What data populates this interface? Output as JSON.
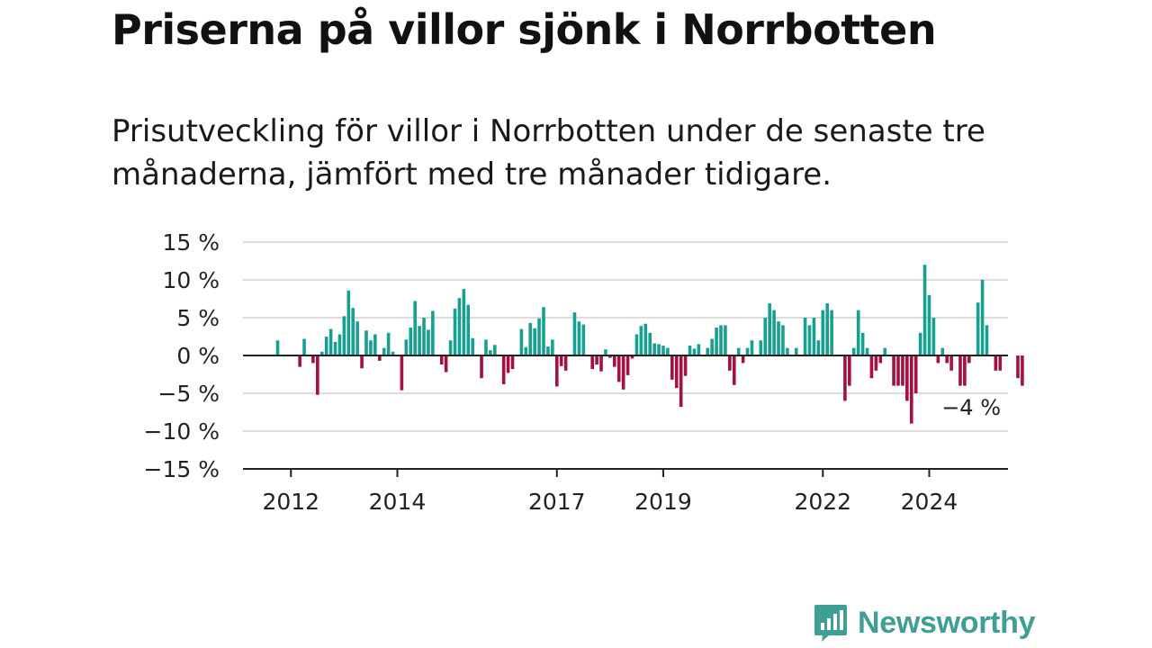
{
  "title": "Priserna på villor sjönk i Norrbotten",
  "subtitle": "Prisutveckling för villor i Norrbotten under de senaste tre månaderna, jämfört med tre månader tidigare.",
  "brand": {
    "name": "Newsworthy",
    "icon": "newsworthy-bar-chart-logo-icon"
  },
  "colors": {
    "positive": "#17a08f",
    "negative": "#a5103f",
    "grid": "#dcdcdc",
    "axis": "#222222",
    "brand": "#3f9e95"
  },
  "chart_data": {
    "type": "bar",
    "unit": "%",
    "ylim": [
      -15,
      15
    ],
    "y_ticks": [
      15,
      10,
      5,
      0,
      -5,
      -10,
      -15
    ],
    "y_tick_labels": [
      "15 %",
      "10 %",
      "5 %",
      "0 %",
      "−5 %",
      "−10 %",
      "−15 %"
    ],
    "x_tick_labels": [
      "2012",
      "2014",
      "2017",
      "2019",
      "2022",
      "2024"
    ],
    "x_tick_dates": [
      "2012-01",
      "2014-01",
      "2017-01",
      "2019-01",
      "2022-01",
      "2024-01"
    ],
    "start_month": "2011-10",
    "grid": true,
    "annotation": {
      "text": "−4 %",
      "target": "last"
    },
    "values": [
      2,
      0,
      0,
      0,
      0,
      -1.5,
      2.2,
      0,
      -1,
      -5.2,
      0.5,
      2.5,
      3.5,
      1.8,
      2.8,
      5.2,
      8.6,
      6.3,
      4.5,
      -1.7,
      3.3,
      2,
      2.8,
      -0.7,
      1,
      3,
      0.5,
      0,
      -4.6,
      2.1,
      3.7,
      7.2,
      3.9,
      5,
      3.4,
      5.9,
      0,
      -1.2,
      -2.2,
      2,
      6.2,
      7.6,
      8.8,
      6.7,
      2.3,
      0,
      -3,
      2.1,
      0.7,
      1.4,
      0,
      -3.8,
      -2.3,
      -1.8,
      0,
      3.5,
      1.1,
      4.3,
      3.6,
      4.9,
      6.4,
      1.2,
      2.1,
      -4.1,
      -1.4,
      -2,
      0,
      5.7,
      4.5,
      4.1,
      0,
      -1.8,
      -1.2,
      -2.1,
      0.8,
      -0.3,
      -1.5,
      -3.5,
      -4.5,
      -2.6,
      -0.4,
      2.8,
      3.9,
      4.2,
      3,
      1.6,
      1.5,
      1.3,
      1,
      -3.2,
      -4.3,
      -6.8,
      -2.7,
      1.3,
      0.9,
      1.5,
      0,
      1,
      2.2,
      3.7,
      4,
      4,
      -2,
      -3.9,
      1,
      -1,
      1,
      2,
      0,
      2,
      5,
      6.9,
      6,
      4.5,
      4,
      1,
      0,
      1,
      0,
      5,
      4,
      5,
      2,
      6,
      6.9,
      6,
      0,
      0,
      -6,
      -4,
      1,
      6,
      3,
      1,
      -3,
      -2,
      -1,
      1,
      0,
      -4,
      -4,
      -4,
      -6,
      -9,
      -5,
      3,
      12,
      8,
      5,
      -1,
      1,
      -1,
      -2,
      0,
      -4,
      -4,
      -1,
      0,
      7,
      10,
      4,
      0,
      -2,
      -2,
      0,
      0,
      0,
      -3,
      -4
    ]
  }
}
